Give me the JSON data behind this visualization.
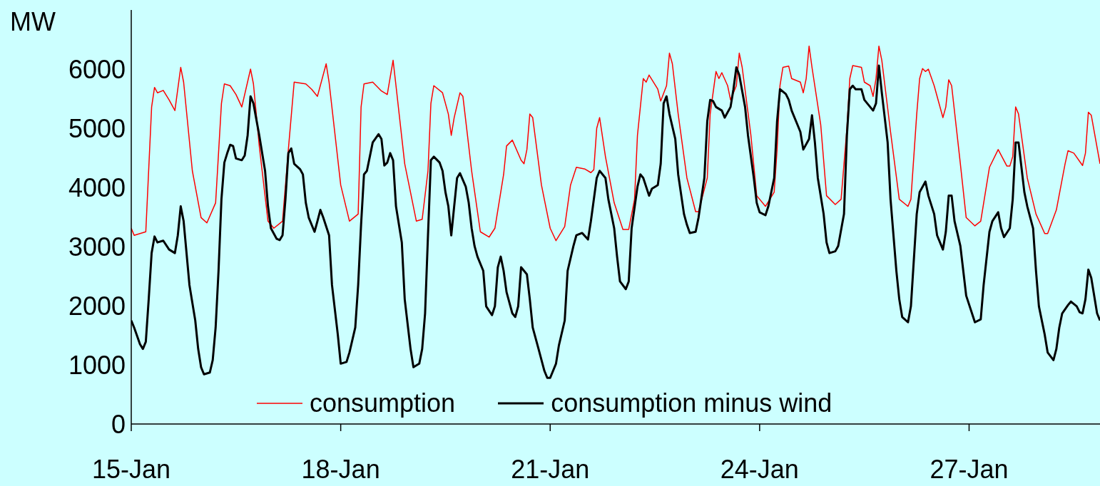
{
  "chart_data": {
    "type": "line",
    "ylabel": "MW",
    "xlim": [
      "--01-15T00:00",
      "--01-28T21:00"
    ],
    "ylim": [
      0,
      7000
    ],
    "yticks": [
      0,
      1000,
      2000,
      3000,
      4000,
      5000,
      6000
    ],
    "xticks": [
      {
        "value": "--01-15",
        "label": "15-Jan"
      },
      {
        "value": "--01-18",
        "label": "18-Jan"
      },
      {
        "value": "--01-21",
        "label": "21-Jan"
      },
      {
        "value": "--01-24",
        "label": "24-Jan"
      },
      {
        "value": "--01-27",
        "label": "27-Jan"
      }
    ],
    "grid": false,
    "legend": "bottom",
    "marker": "none",
    "line_style": "solid",
    "series": [
      {
        "name": "consumption",
        "color": "#ff0000",
        "x": [
          "--01-15T00:00",
          "--01-15T01:00",
          "--01-15T05:00",
          "--01-15T07:00",
          "--01-15T08:00",
          "--01-15T09:00",
          "--01-15T11:00",
          "--01-15T13:00",
          "--01-15T15:00",
          "--01-15T17:00",
          "--01-15T18:00",
          "--01-15T21:00",
          "--01-16T00:00",
          "--01-16T02:00",
          "--01-16T05:00",
          "--01-16T07:00",
          "--01-16T08:00",
          "--01-16T10:00",
          "--01-16T12:00",
          "--01-16T14:00",
          "--01-16T17:00",
          "--01-16T18:00",
          "--01-16T20:00",
          "--01-16T23:00",
          "--01-17T01:00",
          "--01-17T04:00",
          "--01-17T06:00",
          "--01-17T08:00",
          "--01-17T12:00",
          "--01-17T14:00",
          "--01-17T16:00",
          "--01-17T19:00",
          "--01-17T20:00",
          "--01-18T00:00",
          "--01-18T03:00",
          "--01-18T06:00",
          "--01-18T07:00",
          "--01-18T08:00",
          "--01-18T11:00",
          "--01-18T14:00",
          "--01-18T16:00",
          "--01-18T18:00",
          "--01-18T19:00",
          "--01-18T22:00",
          "--01-19T02:00",
          "--01-19T04:00",
          "--01-19T06:00",
          "--01-19T07:00",
          "--01-19T08:00",
          "--01-19T11:00",
          "--01-19T13:00",
          "--01-19T14:00",
          "--01-19T15:00",
          "--01-19T17:00",
          "--01-19T18:00",
          "--01-19T21:00",
          "--01-20T00:00",
          "--01-20T03:00",
          "--01-20T05:00",
          "--01-20T08:00",
          "--01-20T09:00",
          "--01-20T11:00",
          "--01-20T14:00",
          "--01-20T15:00",
          "--01-20T16:00",
          "--01-20T17:00",
          "--01-20T18:00",
          "--01-20T21:00",
          "--01-21T00:00",
          "--01-21T02:00",
          "--01-21T05:00",
          "--01-21T07:00",
          "--01-21T09:00",
          "--01-21T12:00",
          "--01-21T14:00",
          "--01-21T15:00",
          "--01-21T16:00",
          "--01-21T17:00",
          "--01-21T19:00",
          "--01-21T22:00",
          "--01-22T01:00",
          "--01-22T03:00",
          "--01-22T05:00",
          "--01-22T06:00",
          "--01-22T08:00",
          "--01-22T09:00",
          "--01-22T10:00",
          "--01-22T13:00",
          "--01-22T14:00",
          "--01-22T16:00",
          "--01-22T17:00",
          "--01-22T18:00",
          "--01-22T20:00",
          "--01-22T23:00",
          "--01-23T02:00",
          "--01-23T03:00",
          "--01-23T06:00",
          "--01-23T07:00",
          "--01-23T09:00",
          "--01-23T10:00",
          "--01-23T11:00",
          "--01-23T13:00",
          "--01-23T14:00",
          "--01-23T16:00",
          "--01-23T17:00",
          "--01-23T18:00",
          "--01-23T21:00",
          "--01-23T23:00",
          "--01-24T02:00",
          "--01-24T05:00",
          "--01-24T06:00",
          "--01-24T07:00",
          "--01-24T08:00",
          "--01-24T10:00",
          "--01-24T11:00",
          "--01-24T14:00",
          "--01-24T15:00",
          "--01-24T16:00",
          "--01-24T17:00",
          "--01-24T18:00",
          "--01-24T21:00",
          "--01-24T23:00",
          "--01-25T02:00",
          "--01-25T04:00",
          "--01-25T06:00",
          "--01-25T07:00",
          "--01-25T08:00",
          "--01-25T11:00",
          "--01-25T12:00",
          "--01-25T14:00",
          "--01-25T15:00",
          "--01-25T16:00",
          "--01-25T17:00",
          "--01-25T18:00",
          "--01-25T21:00",
          "--01-26T00:00",
          "--01-26T03:00",
          "--01-26T04:00",
          "--01-26T06:00",
          "--01-26T07:00",
          "--01-26T08:00",
          "--01-26T09:00",
          "--01-26T10:00",
          "--01-26T12:00",
          "--01-26T15:00",
          "--01-26T16:00",
          "--01-26T17:00",
          "--01-26T18:00",
          "--01-26T21:00",
          "--01-26T23:00",
          "--01-27T02:00",
          "--01-27T04:00",
          "--01-27T07:00",
          "--01-27T10:00",
          "--01-27T13:00",
          "--01-27T14:00",
          "--01-27T15:00",
          "--01-27T16:00",
          "--01-27T17:00",
          "--01-27T20:00",
          "--01-27T23:00",
          "--01-28T02:00",
          "--01-28T03:00",
          "--01-28T06:00",
          "--01-28T09:00",
          "--01-28T10:00",
          "--01-28T12:00",
          "--01-28T15:00",
          "--01-28T16:00",
          "--01-28T17:00",
          "--01-28T18:00",
          "--01-28T21:00"
        ],
        "values": [
          3310,
          3190,
          3250,
          5360,
          5690,
          5600,
          5640,
          5480,
          5300,
          6030,
          5780,
          4280,
          3490,
          3400,
          3740,
          5420,
          5750,
          5720,
          5570,
          5360,
          6000,
          5750,
          4700,
          3430,
          3310,
          3430,
          4640,
          5780,
          5750,
          5660,
          5540,
          6090,
          5780,
          4040,
          3430,
          3550,
          5360,
          5750,
          5780,
          5630,
          5570,
          6150,
          5720,
          4400,
          3430,
          3460,
          4280,
          5420,
          5720,
          5600,
          5240,
          4880,
          5180,
          5600,
          5540,
          4280,
          3250,
          3160,
          3310,
          4220,
          4700,
          4800,
          4460,
          4400,
          4640,
          5240,
          5180,
          4040,
          3310,
          3100,
          3340,
          4040,
          4340,
          4310,
          4250,
          4300,
          5000,
          5180,
          4520,
          3740,
          3290,
          3290,
          3800,
          4880,
          5840,
          5780,
          5900,
          5660,
          5460,
          5720,
          6270,
          6090,
          5240,
          4160,
          3590,
          3590,
          4160,
          5240,
          5960,
          5840,
          5940,
          5720,
          5480,
          5720,
          6270,
          6030,
          4880,
          3860,
          3680,
          3920,
          4640,
          5720,
          6030,
          6050,
          5840,
          5780,
          5600,
          5840,
          6390,
          6030,
          5060,
          3860,
          3710,
          3800,
          5000,
          5840,
          6060,
          6030,
          5780,
          5720,
          5540,
          5840,
          6390,
          6150,
          4940,
          3800,
          3680,
          3800,
          5240,
          5840,
          6010,
          5960,
          6000,
          5720,
          5180,
          5360,
          5820,
          5720,
          4400,
          3490,
          3350,
          3430,
          4340,
          4640,
          4360,
          4360,
          4520,
          5360,
          5240,
          4160,
          3550,
          3220,
          3220,
          3620,
          4400,
          4620,
          4580,
          4370,
          4580,
          5270,
          5220,
          4400
        ]
      },
      {
        "name": "consumption minus wind",
        "color": "#000000",
        "x": [
          "--01-15T00:00",
          "--01-15T01:00",
          "--01-15T03:00",
          "--01-15T04:00",
          "--01-15T05:00",
          "--01-15T06:00",
          "--01-15T07:00",
          "--01-15T08:00",
          "--01-15T09:00",
          "--01-15T11:00",
          "--01-15T13:00",
          "--01-15T15:00",
          "--01-15T16:00",
          "--01-15T17:00",
          "--01-15T18:00",
          "--01-15T20:00",
          "--01-15T22:00",
          "--01-15T23:00",
          "--01-16T00:00",
          "--01-16T01:00",
          "--01-16T03:00",
          "--01-16T04:00",
          "--01-16T05:00",
          "--01-16T06:00",
          "--01-16T07:00",
          "--01-16T08:00",
          "--01-16T09:00",
          "--01-16T10:00",
          "--01-16T11:00",
          "--01-16T12:00",
          "--01-16T14:00",
          "--01-16T15:00",
          "--01-16T16:00",
          "--01-16T17:00",
          "--01-16T18:00",
          "--01-16T20:00",
          "--01-16T22:00",
          "--01-16T23:00",
          "--01-17T00:00",
          "--01-17T02:00",
          "--01-17T03:00",
          "--01-17T04:00",
          "--01-17T05:00",
          "--01-17T06:00",
          "--01-17T07:00",
          "--01-17T08:00",
          "--01-17T10:00",
          "--01-17T11:00",
          "--01-17T12:00",
          "--01-17T13:00",
          "--01-17T15:00",
          "--01-17T16:00",
          "--01-17T17:00",
          "--01-17T18:00",
          "--01-17T20:00",
          "--01-17T21:00",
          "--01-17T23:00",
          "--01-18T00:00",
          "--01-18T02:00",
          "--01-18T03:00",
          "--01-18T05:00",
          "--01-18T06:00",
          "--01-18T07:00",
          "--01-18T08:00",
          "--01-18T09:00",
          "--01-18T10:00",
          "--01-18T11:00",
          "--01-18T13:00",
          "--01-18T14:00",
          "--01-18T15:00",
          "--01-18T16:00",
          "--01-18T17:00",
          "--01-18T18:00",
          "--01-18T19:00",
          "--01-18T21:00",
          "--01-18T22:00",
          "--01-19T00:00",
          "--01-19T01:00",
          "--01-19T03:00",
          "--01-19T04:00",
          "--01-19T05:00",
          "--01-19T06:00",
          "--01-19T07:00",
          "--01-19T08:00",
          "--01-19T10:00",
          "--01-19T11:00",
          "--01-19T12:00",
          "--01-19T13:00",
          "--01-19T14:00",
          "--01-19T15:00",
          "--01-19T16:00",
          "--01-19T17:00",
          "--01-19T19:00",
          "--01-19T20:00",
          "--01-19T21:00",
          "--01-19T22:00",
          "--01-19T23:00",
          "--01-20T01:00",
          "--01-20T02:00",
          "--01-20T04:00",
          "--01-20T05:00",
          "--01-20T06:00",
          "--01-20T07:00",
          "--01-20T08:00",
          "--01-20T09:00",
          "--01-20T11:00",
          "--01-20T12:00",
          "--01-20T13:00",
          "--01-20T14:00",
          "--01-20T16:00",
          "--01-20T17:00",
          "--01-20T18:00",
          "--01-20T20:00",
          "--01-20T22:00",
          "--01-20T23:00",
          "--01-21T00:00",
          "--01-21T02:00",
          "--01-21T03:00",
          "--01-21T05:00",
          "--01-21T06:00",
          "--01-21T08:00",
          "--01-21T09:00",
          "--01-21T11:00",
          "--01-21T13:00",
          "--01-21T14:00",
          "--01-21T16:00",
          "--01-21T17:00",
          "--01-21T19:00",
          "--01-21T20:00",
          "--01-21T22:00",
          "--01-21T23:00",
          "--01-22T00:00",
          "--01-22T02:00",
          "--01-22T03:00",
          "--01-22T04:00",
          "--01-22T06:00",
          "--01-22T07:00",
          "--01-22T08:00",
          "--01-22T10:00",
          "--01-22T11:00",
          "--01-22T13:00",
          "--01-22T14:00",
          "--01-22T15:00",
          "--01-22T16:00",
          "--01-22T17:00",
          "--01-22T19:00",
          "--01-22T20:00",
          "--01-22T22:00",
          "--01-22T23:00",
          "--01-23T00:00",
          "--01-23T02:00",
          "--01-23T03:00",
          "--01-23T05:00",
          "--01-23T06:00",
          "--01-23T07:00",
          "--01-23T08:00",
          "--01-23T09:00",
          "--01-23T11:00",
          "--01-23T12:00",
          "--01-23T14:00",
          "--01-23T15:00",
          "--01-23T16:00",
          "--01-23T17:00",
          "--01-23T19:00",
          "--01-23T20:00",
          "--01-23T22:00",
          "--01-23T23:00",
          "--01-24T00:00",
          "--01-24T02:00",
          "--01-24T03:00",
          "--01-24T05:00",
          "--01-24T06:00",
          "--01-24T07:00",
          "--01-24T09:00",
          "--01-24T10:00",
          "--01-24T11:00",
          "--01-24T13:00",
          "--01-24T14:00",
          "--01-24T15:00",
          "--01-24T17:00",
          "--01-24T18:00",
          "--01-24T19:00",
          "--01-24T20:00",
          "--01-24T22:00",
          "--01-24T23:00",
          "--01-25T00:00",
          "--01-25T02:00",
          "--01-25T03:00",
          "--01-25T05:00",
          "--01-25T06:00",
          "--01-25T07:00",
          "--01-25T08:00",
          "--01-25T09:00",
          "--01-25T11:00",
          "--01-25T12:00",
          "--01-25T13:00",
          "--01-25T15:00",
          "--01-25T16:00",
          "--01-25T17:00",
          "--01-25T18:00",
          "--01-25T20:00",
          "--01-25T21:00",
          "--01-25T23:00",
          "--01-26T00:00",
          "--01-26T01:00",
          "--01-26T03:00",
          "--01-26T04:00",
          "--01-26T06:00",
          "--01-26T07:00",
          "--01-26T09:00",
          "--01-26T10:00",
          "--01-26T12:00",
          "--01-26T13:00",
          "--01-26T15:00",
          "--01-26T16:00",
          "--01-26T17:00",
          "--01-26T18:00",
          "--01-26T19:00",
          "--01-26T21:00",
          "--01-26T22:00",
          "--01-26T23:00",
          "--01-27T01:00",
          "--01-27T02:00",
          "--01-27T04:00",
          "--01-27T05:00",
          "--01-27T07:00",
          "--01-27T08:00",
          "--01-27T10:00",
          "--01-27T11:00",
          "--01-27T12:00",
          "--01-27T14:00",
          "--01-27T15:00",
          "--01-27T16:00",
          "--01-27T17:00",
          "--01-27T19:00",
          "--01-27T20:00",
          "--01-27T22:00",
          "--01-27T23:00",
          "--01-28T00:00",
          "--01-28T02:00",
          "--01-28T03:00",
          "--01-28T05:00",
          "--01-28T06:00",
          "--01-28T07:00",
          "--01-28T08:00",
          "--01-28T10:00",
          "--01-28T11:00",
          "--01-28T13:00",
          "--01-28T14:00",
          "--01-28T15:00",
          "--01-28T16:00",
          "--01-28T17:00",
          "--01-28T18:00",
          "--01-28T20:00",
          "--01-28T21:00"
        ],
        "values": [
          1750,
          1630,
          1350,
          1270,
          1390,
          2110,
          2890,
          3170,
          3070,
          3100,
          2950,
          2890,
          3190,
          3680,
          3430,
          2350,
          1750,
          1270,
          960,
          840,
          870,
          1080,
          1630,
          2590,
          3800,
          4420,
          4580,
          4720,
          4700,
          4490,
          4460,
          4540,
          4880,
          5540,
          5420,
          4880,
          4280,
          3680,
          3310,
          3130,
          3110,
          3190,
          3800,
          4580,
          4660,
          4400,
          4310,
          4220,
          3740,
          3490,
          3250,
          3430,
          3620,
          3490,
          3190,
          2350,
          1510,
          1020,
          1050,
          1210,
          1630,
          2350,
          3370,
          4220,
          4280,
          4520,
          4760,
          4900,
          4820,
          4370,
          4420,
          4580,
          4460,
          3680,
          3070,
          2110,
          1270,
          960,
          1020,
          1270,
          1870,
          3190,
          4460,
          4520,
          4420,
          4280,
          3920,
          3680,
          3190,
          3680,
          4160,
          4240,
          4010,
          3740,
          3310,
          3010,
          2830,
          2590,
          1990,
          1840,
          1990,
          2650,
          2830,
          2590,
          2230,
          1870,
          1810,
          1990,
          2650,
          2530,
          2110,
          1630,
          1270,
          900,
          780,
          780,
          1020,
          1330,
          1750,
          2590,
          3010,
          3190,
          3230,
          3120,
          3430,
          4160,
          4280,
          4160,
          3800,
          3310,
          2830,
          2410,
          2280,
          2410,
          3310,
          4010,
          4220,
          4160,
          3860,
          3980,
          4040,
          4400,
          5420,
          5540,
          5240,
          4820,
          4220,
          3550,
          3370,
          3230,
          3250,
          3490,
          4160,
          5120,
          5480,
          5460,
          5360,
          5300,
          5180,
          5360,
          5660,
          6030,
          5900,
          5360,
          4880,
          4160,
          3740,
          3580,
          3530,
          3680,
          4160,
          5120,
          5660,
          5580,
          5480,
          5300,
          5060,
          4940,
          4640,
          4820,
          5220,
          4760,
          4160,
          3550,
          3070,
          2890,
          2920,
          3010,
          3550,
          4880,
          5660,
          5720,
          5660,
          5660,
          5480,
          5420,
          5300,
          5420,
          6060,
          5600,
          4760,
          3800,
          2590,
          2110,
          1810,
          1720,
          1990,
          3550,
          3920,
          4100,
          3860,
          3550,
          3190,
          2950,
          3250,
          3860,
          3860,
          3430,
          3010,
          2590,
          2170,
          1870,
          1720,
          1770,
          2350,
          3250,
          3430,
          3580,
          3310,
          3160,
          3310,
          3800,
          4760,
          4760,
          3920,
          3680,
          3310,
          2590,
          1990,
          1510,
          1210,
          1080,
          1270,
          1630,
          1870,
          2010,
          2070,
          1990,
          1890,
          1870,
          2110,
          2610,
          2470,
          1870,
          1750
        ]
      }
    ]
  }
}
